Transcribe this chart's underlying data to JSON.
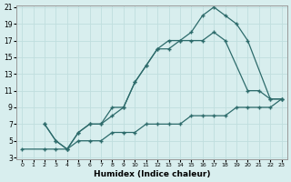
{
  "xlabel": "Humidex (Indice chaleur)",
  "background_color": "#d8eeee",
  "line_color": "#2d6b6b",
  "grid_color": "#c0dede",
  "xlim": [
    -0.5,
    23.5
  ],
  "ylim": [
    3,
    21
  ],
  "xticks": [
    0,
    1,
    2,
    3,
    4,
    5,
    6,
    7,
    8,
    9,
    10,
    11,
    12,
    13,
    14,
    15,
    16,
    17,
    18,
    19,
    20,
    21,
    22,
    23
  ],
  "yticks": [
    3,
    5,
    7,
    9,
    11,
    13,
    15,
    17,
    19,
    21
  ],
  "series": [
    {
      "x": [
        2,
        3,
        4,
        5,
        6,
        7,
        8,
        9,
        10,
        11,
        12,
        13,
        14,
        15,
        16,
        17,
        18,
        19,
        20,
        22,
        23
      ],
      "y": [
        7,
        5,
        4,
        6,
        7,
        7,
        9,
        9,
        12,
        14,
        16,
        17,
        17,
        18,
        20,
        21,
        20,
        19,
        17,
        10,
        10
      ]
    },
    {
      "x": [
        2,
        3,
        4,
        5,
        6,
        7,
        8,
        9,
        10,
        11,
        12,
        13,
        14,
        15,
        16,
        17,
        18,
        20,
        21,
        22,
        23
      ],
      "y": [
        7,
        5,
        4,
        6,
        7,
        7,
        8,
        9,
        12,
        14,
        16,
        16,
        17,
        17,
        17,
        18,
        17,
        11,
        11,
        10,
        10
      ]
    },
    {
      "x": [
        0,
        2,
        3,
        4,
        5,
        6,
        7,
        8,
        9,
        10,
        11,
        12,
        13,
        14,
        15,
        16,
        17,
        18,
        19,
        20,
        21,
        22,
        23
      ],
      "y": [
        4,
        4,
        4,
        4,
        5,
        5,
        5,
        6,
        6,
        6,
        7,
        7,
        7,
        7,
        8,
        8,
        8,
        8,
        9,
        9,
        9,
        9,
        10
      ]
    }
  ]
}
